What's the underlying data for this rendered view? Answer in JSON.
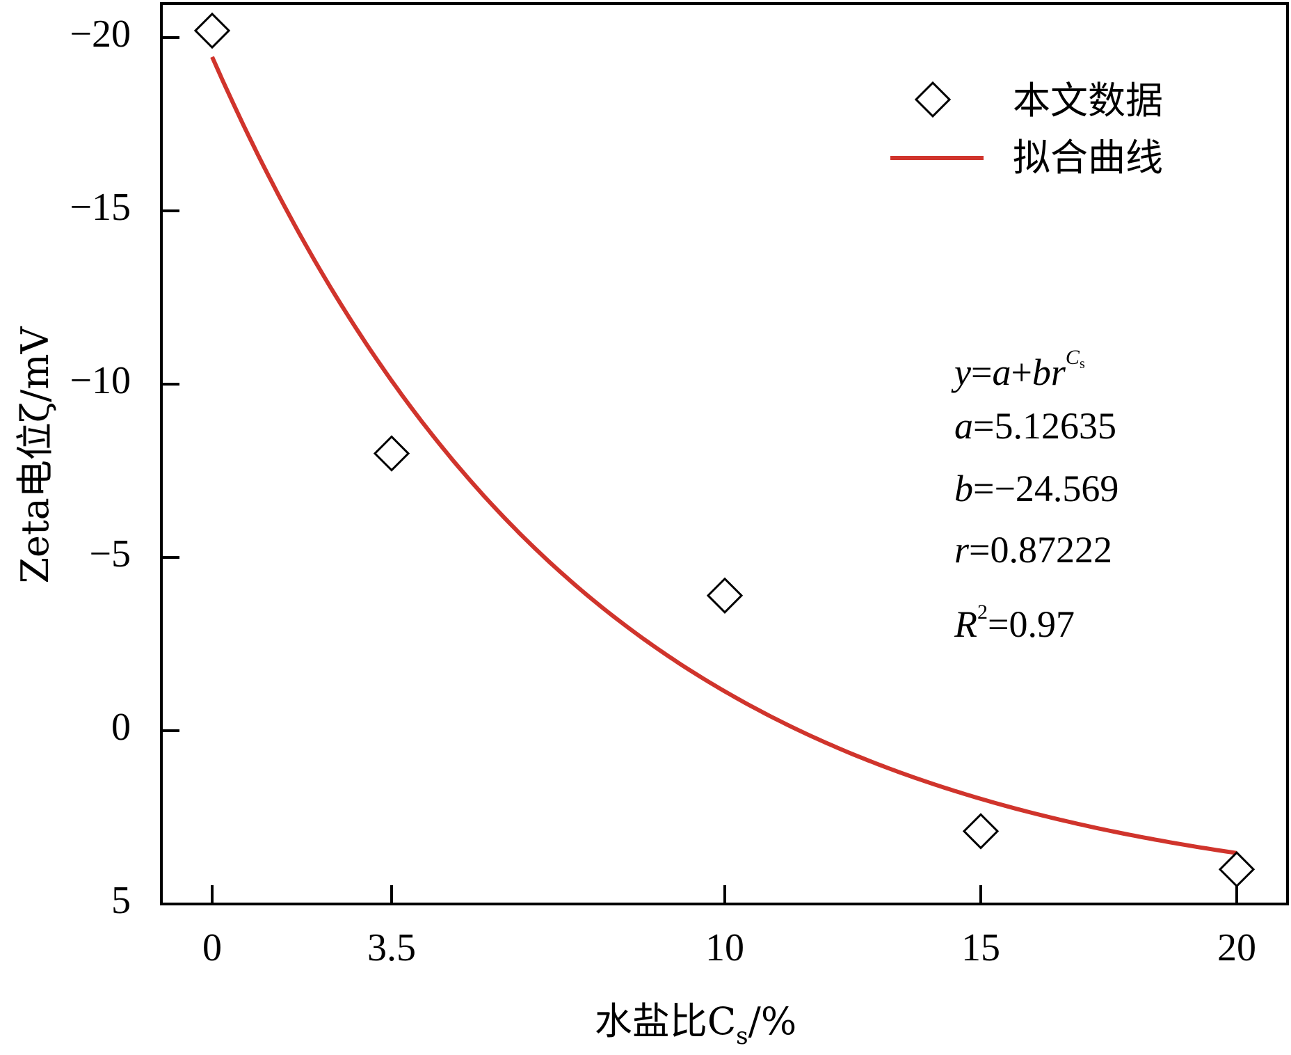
{
  "chart_data": {
    "type": "scatter",
    "xlabel": "水盐比C",
    "xlabel_sub": "s",
    "xlabel_unit": "/%",
    "ylabel": "Zeta电位ζ/mV",
    "y_axis_inverted": true,
    "ylim": [
      -20,
      5
    ],
    "y_ticks": [
      -20,
      -15,
      -10,
      -5,
      0,
      5
    ],
    "y_tick_labels": [
      "−20",
      "−15",
      "−10",
      "−5",
      "0",
      "5"
    ],
    "x_ticks": [
      0,
      3.5,
      10,
      15,
      20
    ],
    "x_tick_labels": [
      "0",
      "3.5",
      "10",
      "15",
      "20"
    ],
    "series": [
      {
        "name": "本文数据",
        "marker": "diamond",
        "x": [
          0,
          3.5,
          10,
          15,
          20
        ],
        "y": [
          -20.2,
          -8.0,
          -3.9,
          2.9,
          4.0
        ]
      },
      {
        "name": "拟合曲线",
        "type": "line",
        "color": "#d0342c",
        "x_range": [
          0,
          20
        ],
        "formula": {
          "a": 5.12635,
          "b": -24.569,
          "r": 0.87222
        }
      }
    ],
    "legend": {
      "position": "top-right"
    },
    "annotation": {
      "equation": {
        "y": "y",
        "eq1": "=",
        "a": "a",
        "plus": "+",
        "b": "b",
        "r": "r",
        "exp_C": "C",
        "exp_s": "s"
      },
      "lines": [
        {
          "var": "a",
          "text": "=5.12635"
        },
        {
          "var": "b",
          "text": "=−24.569"
        },
        {
          "var": "r",
          "text": "=0.87222"
        }
      ],
      "r2": {
        "var": "R",
        "sup": "2",
        "text": "=0.97"
      }
    },
    "grid": false
  }
}
